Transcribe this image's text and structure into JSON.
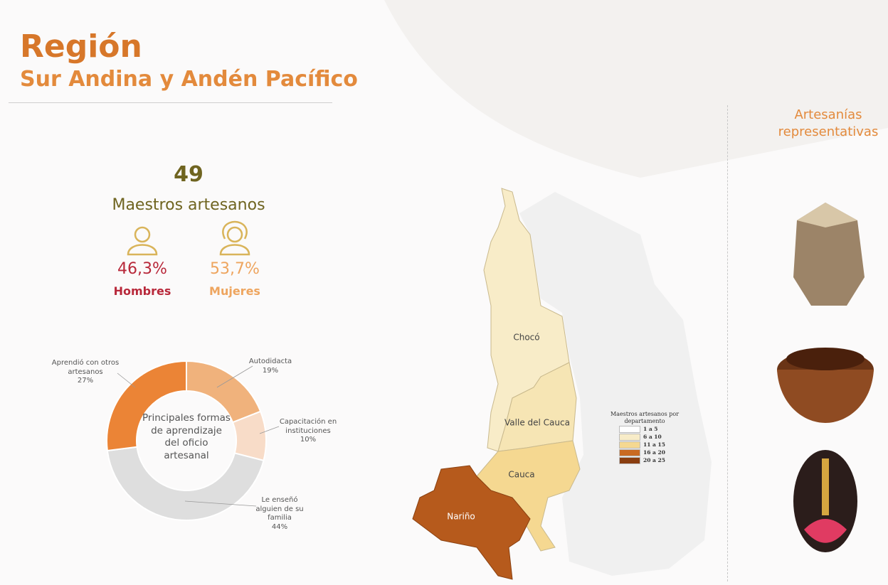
{
  "header": {
    "title": "Región",
    "subtitle": "Sur Andina y Andén Pacífico"
  },
  "stats": {
    "total": "49",
    "total_label": "Maestros artesanos",
    "men": {
      "value": "46,3%",
      "label": "Hombres",
      "color": "#b8283a"
    },
    "women": {
      "value": "53,7%",
      "label": "Mujeres",
      "color": "#eea55f"
    }
  },
  "chart_data": {
    "type": "donut",
    "title": "Principales formas de aprendizaje del oficio artesanal",
    "categories": [
      "Autodidacta",
      "Capacitación en instituciones",
      "Le enseñó alguien de su familia",
      "Aprendió con otros artesanos"
    ],
    "values": [
      19,
      10,
      44,
      27
    ],
    "value_labels": [
      "19%",
      "10%",
      "44%",
      "27%"
    ],
    "colors": [
      "#f0b27c",
      "#f8dcc8",
      "#dedede",
      "#eb8436"
    ]
  },
  "map": {
    "regions": [
      {
        "name": "Chocó",
        "color": "#f8ecc8"
      },
      {
        "name": "Valle del Cauca",
        "color": "#f6e5b4"
      },
      {
        "name": "Cauca",
        "color": "#f5d891"
      },
      {
        "name": "Nariño",
        "color": "#b65a1c"
      }
    ],
    "legend": {
      "title": "Maestros artesanos por departamento",
      "items": [
        {
          "label": "1 a 5",
          "color": "#ffffff"
        },
        {
          "label": "6 a 10",
          "color": "#f8ecc8"
        },
        {
          "label": "11 a 15",
          "color": "#f5d891"
        },
        {
          "label": "16 a 20",
          "color": "#c96a22"
        },
        {
          "label": "20 a 25",
          "color": "#8a3e10"
        }
      ]
    }
  },
  "crafts": {
    "title": "Artesanías representativas"
  }
}
